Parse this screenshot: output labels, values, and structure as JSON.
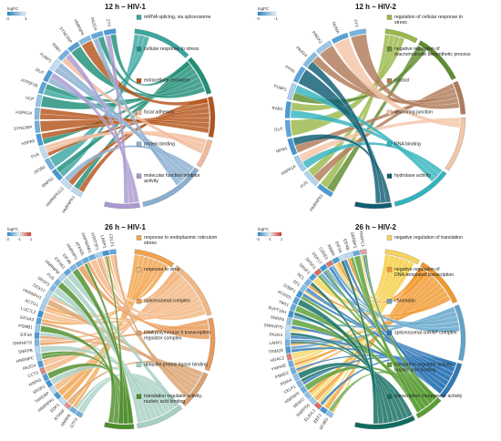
{
  "chart_data": [
    {
      "type": "chord",
      "title": "12 h – HIV-1",
      "legend": {
        "title": "logFC",
        "ticks": [
          "-3",
          "-1"
        ],
        "colors": [
          "#1e7fc4",
          "#eaf3fb"
        ]
      },
      "genes": [
        "HNRNPA1",
        "HNRNPA1L2",
        "RNPS1",
        "SF3B1",
        "FUS",
        "HSPA5",
        "SYNCRIP",
        "HSPA1A",
        "VCP",
        "ATP5F1B",
        "DUT",
        "FUBP1",
        "RAB1",
        "SYNCRIP",
        "HNRNPK",
        "PA2G4",
        "ZYX"
      ],
      "terms": [
        {
          "label": "mRNA splicing, via spliceosome",
          "color": "#3aa6a0"
        },
        {
          "label": "cellular response to stress",
          "color": "#1f8e78"
        },
        {
          "label": "extracellular exosome",
          "color": "#b5541a"
        },
        {
          "label": "focal adhesion",
          "color": "#f2b99a"
        },
        {
          "label": "protein binding",
          "color": "#8aaed1"
        },
        {
          "label": "molecular function inhibitor activity",
          "color": "#a999cf"
        }
      ]
    },
    {
      "type": "chord",
      "title": "12 h – HIV-2",
      "legend": {
        "title": "logFC",
        "ticks": [
          "-3",
          "-1"
        ],
        "colors": [
          "#1e7fc4",
          "#eaf3fb"
        ]
      },
      "genes": [
        "HNRNPA1",
        "FUS",
        "HSPA1A",
        "NPM1",
        "DUT",
        "RAB1",
        "FUBP1",
        "PFN1",
        "PA2G4",
        "PRDX2",
        "NUMA",
        "ZYX"
      ],
      "terms": [
        {
          "label": "regulation of cellular response to stress",
          "color": "#9ab84a"
        },
        {
          "label": "negative regulation of macromolecule biosynthetic process",
          "color": "#5e8c2e"
        },
        {
          "label": "cytosol",
          "color": "#b07a58"
        },
        {
          "label": "anchoring junction",
          "color": "#f3c6a7"
        },
        {
          "label": "RNA binding",
          "color": "#33b3bd"
        },
        {
          "label": "hydrolase activity",
          "color": "#0f5d73"
        }
      ]
    },
    {
      "type": "chord",
      "title": "26 h – HIV-1",
      "legend": {
        "title": "logFC",
        "ticks": [
          "-3",
          "-1",
          "1"
        ],
        "colors": [
          "#1e7fc4",
          "#eaf3fb",
          "#d7301f"
        ]
      },
      "genes": [
        "GTF3",
        "SNRPE",
        "RTRAF",
        "EDF1",
        "HNRNPA1",
        "TARDBP",
        "SRSF2",
        "HSPA5",
        "CCT3",
        "PA2G4",
        "HNRNPC",
        "SNRPB",
        "SNRNP70",
        "EIF3A",
        "PSMB1",
        "EIF4A3",
        "LUC7L2",
        "ACTG1",
        "HNRNPH1",
        "DDX17",
        "SRSF3",
        "FUS",
        "HNRNPM",
        "EIF4A1",
        "EIF4B",
        "HNRNPU",
        "ATXN2L",
        "HSP90AB1",
        "HTATSF1",
        "LARP1",
        "CELF1"
      ],
      "terms": [
        {
          "label": "response to endoplasmic reticulum stress",
          "color": "#f2a24a"
        },
        {
          "label": "response to virus",
          "color": "#f3b681"
        },
        {
          "label": "spliceosomal complex",
          "color": "#e89a58"
        },
        {
          "label": "RNA polymerase II transcription regulator complex",
          "color": "#dba16f"
        },
        {
          "label": "ubiquitin protein ligase binding",
          "color": "#a6d0c3"
        },
        {
          "label": "translation regulator activity, nucleic acid binding",
          "color": "#4d8d2a"
        }
      ]
    },
    {
      "type": "chord",
      "title": "26 h – HIV-2",
      "legend": {
        "title": "logFC",
        "ticks": [
          "-3",
          "-1",
          "1"
        ],
        "colors": [
          "#1e7fc4",
          "#eaf3fb",
          "#d7301f"
        ]
      },
      "genes": [
        "SF3B3",
        "EEF2",
        "ELAVL1",
        "SNRPD1",
        "SRSF2",
        "HNRNPF",
        "CELF1",
        "PDIA4",
        "PSMD2",
        "YWHAE",
        "HDAC2",
        "TRIM28",
        "LARP1",
        "PA2G4",
        "SNRNP70",
        "SNRPA",
        "SUPT16H",
        "YBX1",
        "ATXN2L",
        "G3BP1",
        "SF1",
        "NCL",
        "SRSF1",
        "SRSF3",
        "DDX17",
        "CSDE1",
        "RBMX",
        "EIF3A",
        "EIF4B",
        "SERBP1",
        "PABPC1"
      ],
      "terms": [
        {
          "label": "negative regulation of translation",
          "color": "#f6d35a"
        },
        {
          "label": "negative regulation of DNA-templated transcription",
          "color": "#f0992e"
        },
        {
          "label": "chromatin",
          "color": "#5fa3c9"
        },
        {
          "label": "spliceosomal snRNP complex",
          "color": "#2f78b7"
        },
        {
          "label": "translation regulator activity, nucleic acid binding",
          "color": "#5a9e36"
        },
        {
          "label": "transcription corepressor activity",
          "color": "#0f6b5f"
        }
      ]
    }
  ]
}
